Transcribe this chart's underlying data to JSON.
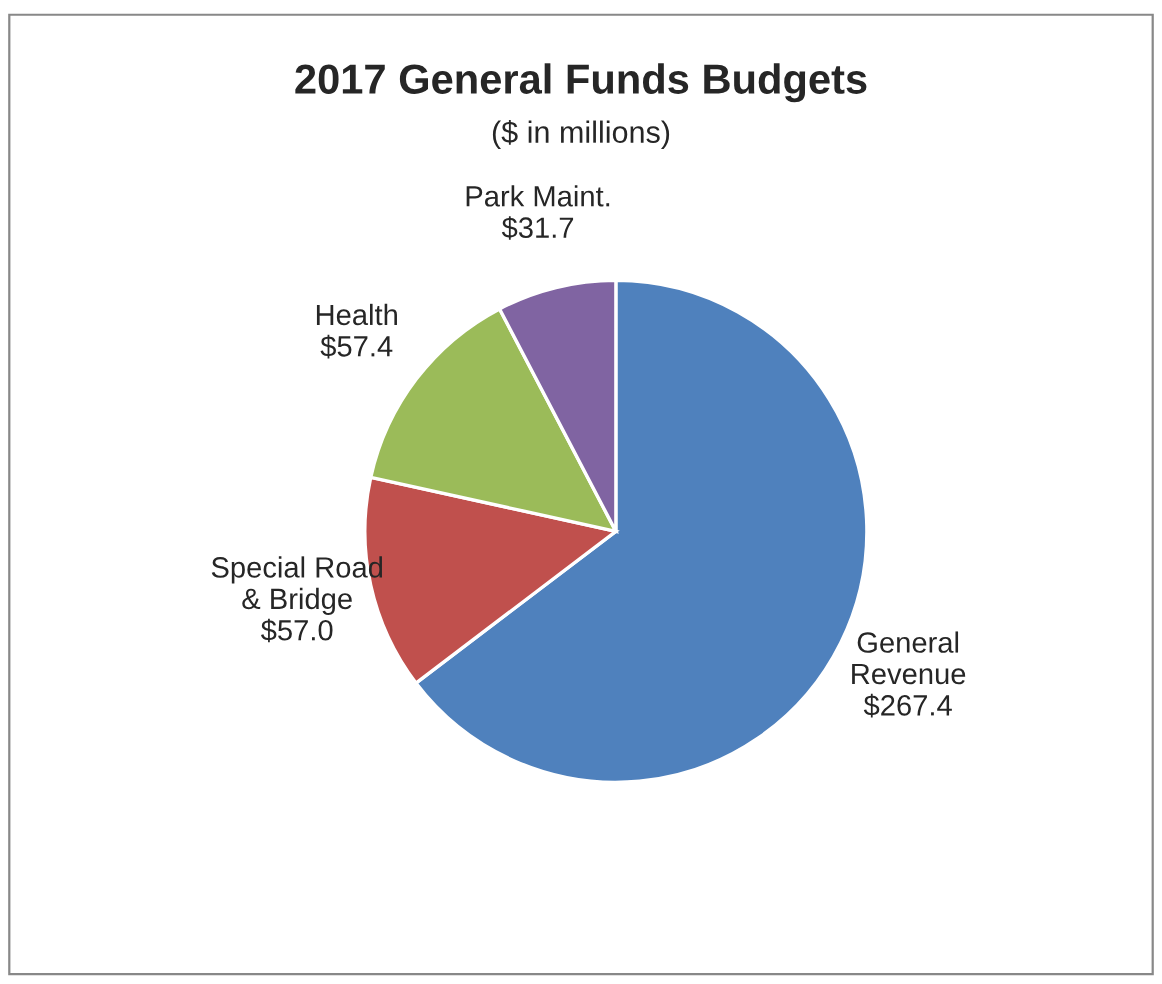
{
  "chart_data": {
    "type": "pie",
    "title": "2017 General Funds Budgets",
    "subtitle": "($ in millions)",
    "categories": [
      "General\nRevenue",
      "Special Road\n& Bridge",
      "Health",
      "Park Maint."
    ],
    "values": [
      267.4,
      57.0,
      57.4,
      31.7
    ],
    "value_labels": [
      "$267.4",
      "$57.0",
      "$57.4",
      "$31.7"
    ],
    "colors": [
      "#4f81bd",
      "#c0504d",
      "#9bbb59",
      "#8064a2"
    ]
  }
}
